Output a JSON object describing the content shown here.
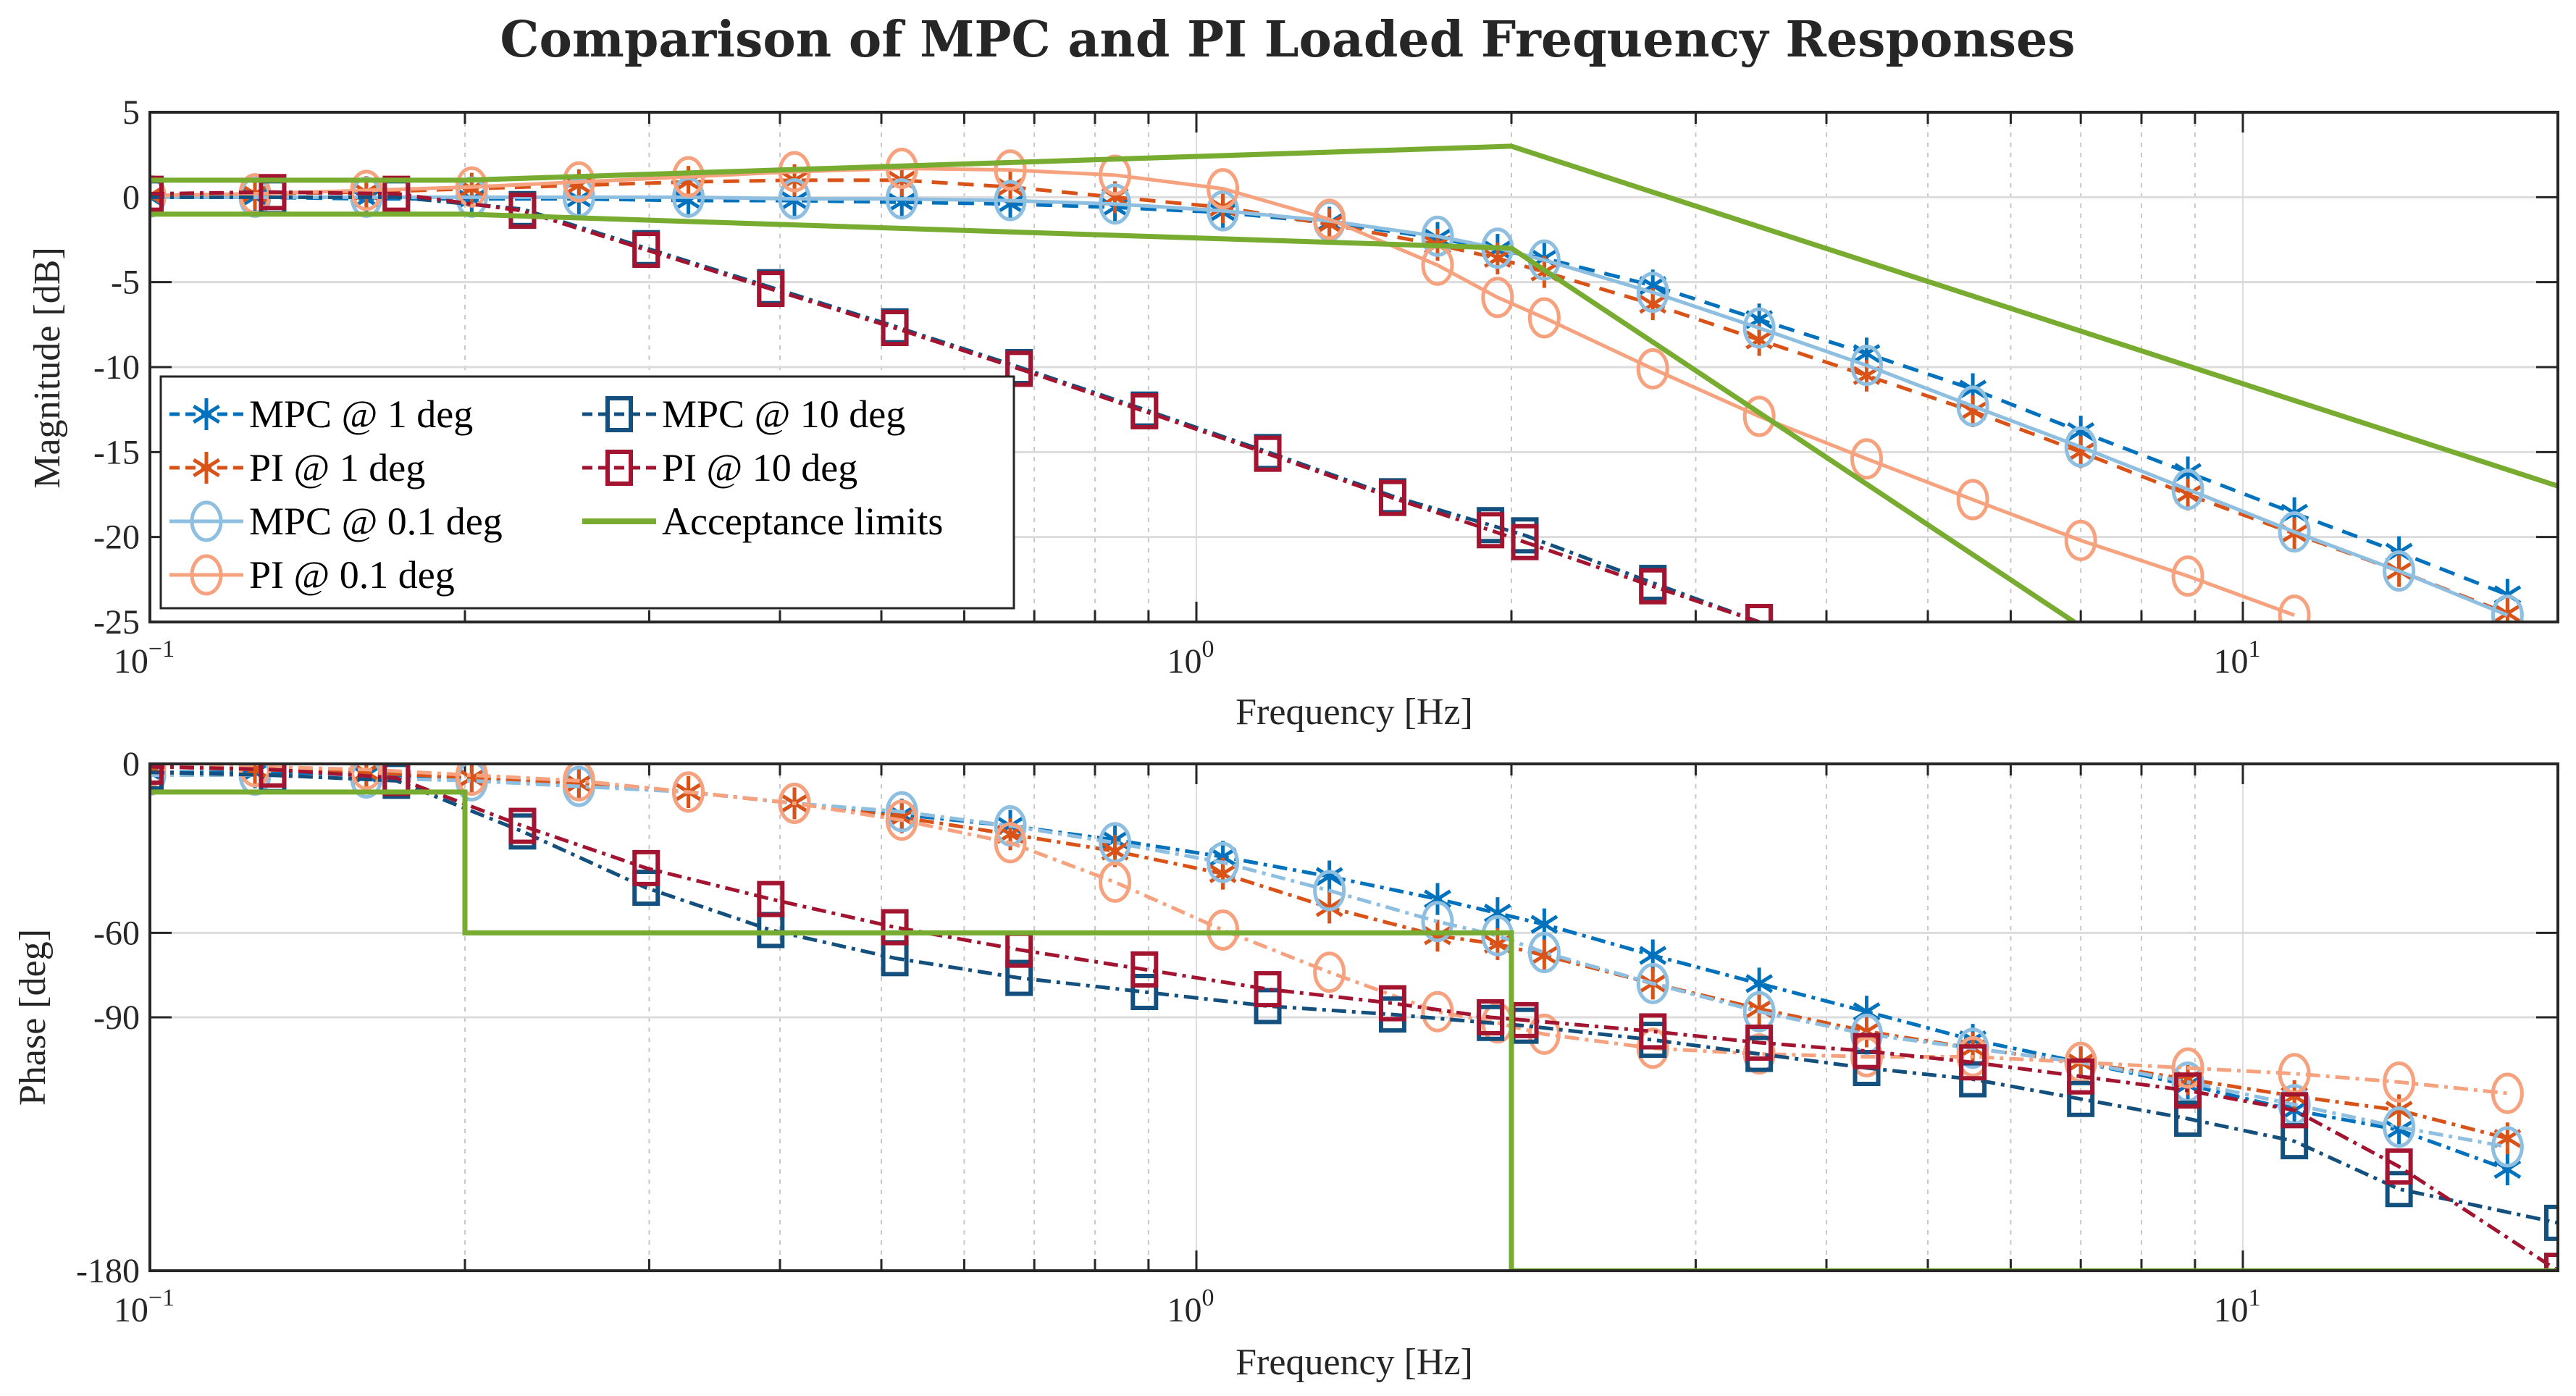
{
  "chart_data": {
    "title": "Comparison of MPC and PI Loaded Frequency Responses",
    "type": "line",
    "subplots": [
      {
        "name": "magnitude",
        "type": "line",
        "xlabel": "Frequency [Hz]",
        "ylabel": "Magnitude [dB]",
        "xscale": "log",
        "xlim": [
          0.1,
          20
        ],
        "ylim": [
          -25,
          5
        ],
        "yticks": [
          5,
          0,
          -5,
          -10,
          -15,
          -20,
          -25
        ],
        "yticklabels": [
          "5",
          "0",
          "-5",
          "-10",
          "-15",
          "-20",
          "-25"
        ],
        "xticks": [
          0.1,
          1,
          10
        ],
        "xticklabels": [
          {
            "base": "10",
            "exp": "−1"
          },
          {
            "base": "10",
            "exp": "0"
          },
          {
            "base": "10",
            "exp": "1"
          }
        ],
        "grid": true,
        "legend": {
          "position": "lower-left",
          "columns": 2,
          "entries": [
            "MPC @ 1 deg",
            "PI @ 1 deg",
            "MPC @ 0.1 deg",
            "PI @ 0.1 deg",
            "MPC @ 10 deg",
            "PI @ 10 deg",
            "Acceptance limits"
          ]
        },
        "series": [
          {
            "name": "MPC @ 1 deg",
            "color": "#0072BD",
            "marker": "asterisk",
            "dash": "dashed",
            "x": [
              0.1,
              0.126,
              0.161,
              0.203,
              0.257,
              0.327,
              0.413,
              0.523,
              0.664,
              0.836,
              1.06,
              1.34,
              1.7,
              1.94,
              2.15,
              2.73,
              3.45,
              4.37,
              5.52,
              7.0,
              8.86,
              11.2,
              14.1,
              17.9
            ],
            "y": [
              0.0,
              0.0,
              -0.1,
              -0.1,
              -0.1,
              -0.2,
              -0.2,
              -0.3,
              -0.4,
              -0.6,
              -0.9,
              -1.5,
              -2.4,
              -3.1,
              -3.6,
              -5.2,
              -7.2,
              -9.2,
              -11.3,
              -13.8,
              -16.2,
              -18.6,
              -20.9,
              -23.4
            ]
          },
          {
            "name": "PI @ 1 deg",
            "color": "#D95319",
            "marker": "asterisk",
            "dash": "dashed",
            "x": [
              0.1,
              0.126,
              0.161,
              0.203,
              0.257,
              0.327,
              0.413,
              0.523,
              0.664,
              0.836,
              1.06,
              1.34,
              1.7,
              1.94,
              2.15,
              2.73,
              3.45,
              4.37,
              5.52,
              7.0,
              8.86,
              11.2,
              14.1,
              17.9
            ],
            "y": [
              0.1,
              0.2,
              0.3,
              0.5,
              0.7,
              0.9,
              1.0,
              1.0,
              0.6,
              0.0,
              -0.6,
              -1.6,
              -2.8,
              -3.6,
              -4.4,
              -6.3,
              -8.4,
              -10.5,
              -12.6,
              -15.0,
              -17.5,
              -19.8,
              -22.0,
              -24.5
            ]
          },
          {
            "name": "MPC @ 0.1 deg",
            "color": "#8EBFE0",
            "marker": "circle",
            "dash": "solid",
            "x": [
              0.1,
              0.126,
              0.161,
              0.203,
              0.257,
              0.327,
              0.413,
              0.523,
              0.664,
              0.836,
              1.06,
              1.34,
              1.7,
              1.94,
              2.15,
              2.73,
              3.45,
              4.37,
              5.52,
              7.0,
              8.86,
              11.2,
              14.1,
              17.9
            ],
            "y": [
              0.0,
              0.0,
              0.0,
              0.0,
              0.0,
              0.0,
              -0.1,
              -0.1,
              -0.2,
              -0.4,
              -0.8,
              -1.4,
              -2.3,
              -3.0,
              -3.7,
              -5.6,
              -7.7,
              -9.9,
              -12.3,
              -14.7,
              -17.2,
              -19.7,
              -22.0,
              -24.6
            ]
          },
          {
            "name": "PI @ 0.1 deg",
            "color": "#F7A27E",
            "marker": "circle",
            "dash": "solid",
            "x": [
              0.1,
              0.126,
              0.161,
              0.203,
              0.257,
              0.327,
              0.413,
              0.523,
              0.664,
              0.836,
              1.06,
              1.34,
              1.7,
              1.94,
              2.15,
              2.73,
              3.45,
              4.37,
              5.52,
              7.0,
              8.86,
              11.2
            ],
            "y": [
              0.1,
              0.2,
              0.4,
              0.6,
              0.9,
              1.2,
              1.5,
              1.7,
              1.6,
              1.3,
              0.5,
              -1.3,
              -4.0,
              -5.9,
              -7.1,
              -10.1,
              -12.9,
              -15.4,
              -17.8,
              -20.2,
              -22.3,
              -24.6
            ]
          },
          {
            "name": "MPC @ 10 deg",
            "color": "#14507E",
            "marker": "square",
            "dash": "dashdot",
            "x": [
              0.1,
              0.131,
              0.172,
              0.227,
              0.298,
              0.392,
              0.515,
              0.677,
              0.892,
              1.17,
              1.54,
              1.91,
              2.06,
              2.73,
              3.45
            ],
            "y": [
              0.0,
              0.0,
              0.0,
              -0.7,
              -3.0,
              -5.3,
              -7.6,
              -10.0,
              -12.5,
              -15.0,
              -17.6,
              -19.3,
              -19.9,
              -22.7,
              -25.0
            ]
          },
          {
            "name": "PI @ 10 deg",
            "color": "#A2142F",
            "marker": "square",
            "dash": "dashdot",
            "x": [
              0.1,
              0.131,
              0.172,
              0.227,
              0.298,
              0.392,
              0.515,
              0.677,
              0.892,
              1.17,
              1.54,
              1.91,
              2.06,
              2.73,
              3.45
            ],
            "y": [
              0.2,
              0.3,
              0.2,
              -0.8,
              -3.1,
              -5.4,
              -7.7,
              -10.1,
              -12.6,
              -15.1,
              -17.7,
              -19.6,
              -20.3,
              -22.9,
              -25.0
            ]
          },
          {
            "name": "Acceptance limits",
            "color": "#77AC30",
            "marker": "none",
            "dash": "solid",
            "segments": [
              {
                "x": [
                  0.1,
                  0.2,
                  2.0,
                  20
                ],
                "y": [
                  1,
                  1,
                  3,
                  -17
                ]
              },
              {
                "x": [
                  0.1,
                  0.2,
                  2.0,
                  6.9
                ],
                "y": [
                  -1,
                  -1,
                  -3,
                  -25
                ]
              }
            ]
          }
        ]
      },
      {
        "name": "phase",
        "type": "line",
        "xlabel": "Frequency [Hz]",
        "ylabel": "Phase [deg]",
        "xscale": "log",
        "xlim": [
          0.1,
          20
        ],
        "ylim": [
          -180,
          0
        ],
        "yticks": [
          0,
          -60,
          -90,
          -180
        ],
        "yticklabels": [
          "0",
          "-60",
          "-90",
          "-180"
        ],
        "xticks": [
          0.1,
          1,
          10
        ],
        "xticklabels": [
          {
            "base": "10",
            "exp": "−1"
          },
          {
            "base": "10",
            "exp": "0"
          },
          {
            "base": "10",
            "exp": "1"
          }
        ],
        "grid": true,
        "series": [
          {
            "name": "MPC @ 1 deg",
            "color": "#0072BD",
            "marker": "asterisk",
            "dash": "dashdot",
            "x": [
              0.1,
              0.126,
              0.161,
              0.203,
              0.257,
              0.327,
              0.413,
              0.523,
              0.664,
              0.836,
              1.06,
              1.34,
              1.7,
              1.94,
              2.15,
              2.73,
              3.45,
              4.37,
              5.52,
              7.0,
              8.86,
              11.2,
              14.1,
              17.9
            ],
            "y": [
              -3,
              -3,
              -4,
              -5,
              -7,
              -10,
              -14,
              -18,
              -22,
              -27,
              -33,
              -40,
              -48,
              -53,
              -57,
              -68,
              -78,
              -88,
              -98,
              -106,
              -114,
              -123,
              -130,
              -144
            ]
          },
          {
            "name": "PI @ 1 deg",
            "color": "#D95319",
            "marker": "asterisk",
            "dash": "dashdot",
            "x": [
              0.1,
              0.126,
              0.161,
              0.203,
              0.257,
              0.327,
              0.413,
              0.523,
              0.664,
              0.836,
              1.06,
              1.34,
              1.7,
              1.94,
              2.15,
              2.73,
              3.45,
              4.37,
              5.52,
              7.0,
              8.86,
              11.2,
              14.1,
              17.9
            ],
            "y": [
              -1,
              -2,
              -3,
              -5,
              -7,
              -10,
              -14,
              -19,
              -25,
              -31,
              -39,
              -51,
              -61,
              -64,
              -68,
              -78,
              -87,
              -95,
              -101,
              -106,
              -112,
              -118,
              -123,
              -133
            ]
          },
          {
            "name": "MPC @ 0.1 deg",
            "color": "#8EBFE0",
            "marker": "circle",
            "dash": "dashdot",
            "x": [
              0.1,
              0.126,
              0.161,
              0.203,
              0.257,
              0.327,
              0.413,
              0.523,
              0.664,
              0.836,
              1.06,
              1.34,
              1.7,
              1.94,
              2.15,
              2.73,
              3.45,
              4.37,
              5.52,
              7.0,
              8.86,
              11.2,
              14.1,
              17.9
            ],
            "y": [
              -4,
              -4,
              -5,
              -6,
              -8,
              -10,
              -14,
              -17,
              -22,
              -28,
              -35,
              -45,
              -56,
              -61,
              -67,
              -78,
              -88,
              -96,
              -101,
              -106,
              -113,
              -121,
              -129,
              -136
            ]
          },
          {
            "name": "PI @ 0.1 deg",
            "color": "#F7A27E",
            "marker": "circle",
            "dash": "dashdot",
            "x": [
              0.1,
              0.126,
              0.161,
              0.203,
              0.257,
              0.327,
              0.413,
              0.523,
              0.664,
              0.836,
              1.06,
              1.34,
              1.7,
              1.94,
              2.15,
              2.73,
              3.45,
              4.37,
              5.52,
              7.0,
              8.86,
              11.2,
              14.1,
              17.9
            ],
            "y": [
              -1,
              -1,
              -2,
              -4,
              -6,
              -10,
              -14,
              -20,
              -28,
              -42,
              -59,
              -74,
              -88,
              -92,
              -96,
              -101,
              -103,
              -104,
              -104,
              -106,
              -108,
              -110,
              -113,
              -117
            ]
          },
          {
            "name": "MPC @ 10 deg",
            "color": "#14507E",
            "marker": "square",
            "dash": "dashdot",
            "x": [
              0.1,
              0.131,
              0.172,
              0.227,
              0.298,
              0.392,
              0.515,
              0.677,
              0.892,
              1.17,
              1.54,
              1.91,
              2.06,
              2.73,
              3.45,
              4.37,
              5.52,
              7.0,
              8.86,
              11.2,
              14.1,
              20
            ],
            "y": [
              -3,
              -4,
              -6,
              -24,
              -44,
              -59,
              -69,
              -76,
              -81,
              -86,
              -89,
              -92,
              -93,
              -98,
              -103,
              -108,
              -112,
              -119,
              -126,
              -134,
              -151,
              -163
            ]
          },
          {
            "name": "PI @ 10 deg",
            "color": "#A2142F",
            "marker": "square",
            "dash": "dashdot",
            "x": [
              0.1,
              0.131,
              0.172,
              0.227,
              0.298,
              0.392,
              0.515,
              0.677,
              0.892,
              1.17,
              1.54,
              1.91,
              2.06,
              2.73,
              3.45,
              4.37,
              5.52,
              7.0,
              8.86,
              11.2,
              14.1,
              20
            ],
            "y": [
              -1,
              -2,
              -5,
              -22,
              -37,
              -48,
              -58,
              -66,
              -73,
              -80,
              -85,
              -90,
              -91,
              -95,
              -99,
              -102,
              -106,
              -111,
              -116,
              -123,
              -143,
              -180
            ]
          },
          {
            "name": "Acceptance limits",
            "color": "#77AC30",
            "marker": "none",
            "dash": "solid",
            "segments": [
              {
                "x": [
                  0.1,
                  0.2,
                  0.2,
                  2.0,
                  2.0,
                  20
                ],
                "y": [
                  -10,
                  -10,
                  -60,
                  -60,
                  -180,
                  -180
                ]
              }
            ]
          }
        ]
      }
    ]
  }
}
